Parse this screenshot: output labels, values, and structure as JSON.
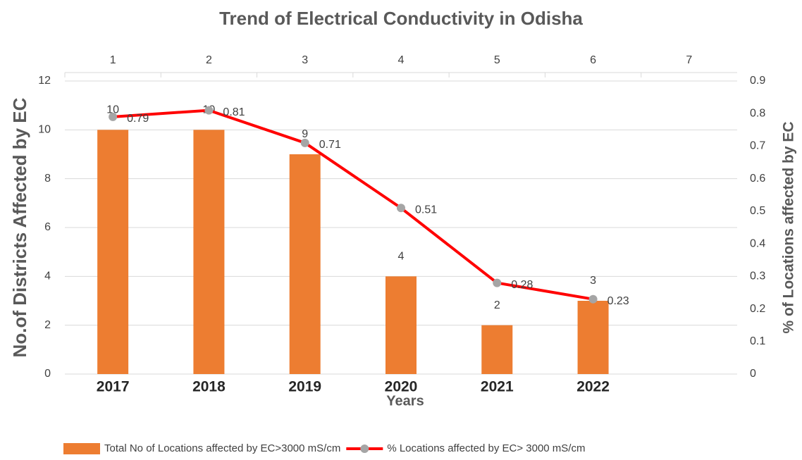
{
  "chart_data": {
    "type": "bar_line",
    "title": "Trend of Electrical Conductivity in Odisha",
    "x_label": "Years",
    "y_label": "No.of Districts Affected by EC",
    "y2_label": "% of Locations affected by EC",
    "categories": [
      "2017",
      "2018",
      "2019",
      "2020",
      "2021",
      "2022",
      null
    ],
    "top_ticks": [
      1,
      2,
      3,
      4,
      5,
      6,
      7
    ],
    "series": [
      {
        "name": "Total No of Locations affected by EC>3000 mS/cm",
        "type": "bar",
        "color": "#ED7D31",
        "values": [
          10,
          10,
          9,
          4,
          2,
          3,
          null
        ]
      },
      {
        "name": "% Locations affected by EC> 3000 mS/cm",
        "type": "line",
        "axis": "y2",
        "color": "#FF0000",
        "marker_color": "#A5A5A5",
        "values": [
          0.79,
          0.81,
          0.71,
          0.51,
          0.28,
          0.23,
          null
        ]
      }
    ],
    "ylim": [
      0,
      12
    ],
    "yticks": [
      0,
      2,
      4,
      6,
      8,
      10,
      12
    ],
    "y2lim": [
      0,
      0.9
    ],
    "y2ticks": [
      0,
      0.1,
      0.2,
      0.3,
      0.4,
      0.5,
      0.6,
      0.7,
      0.8,
      0.9
    ],
    "grid": true,
    "legend": "bottom"
  }
}
